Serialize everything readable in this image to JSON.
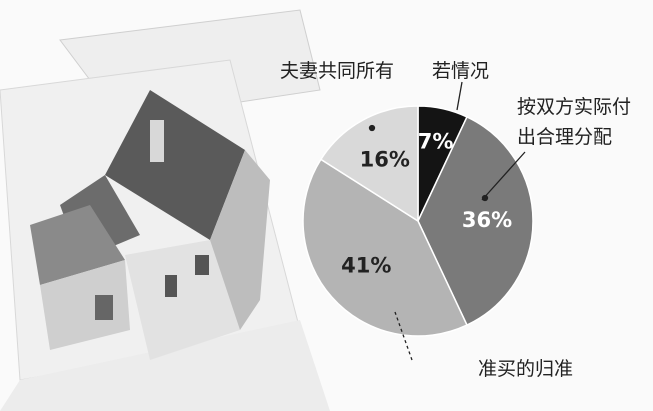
{
  "chart_data": {
    "type": "pie",
    "categories": [
      "若情况",
      "按双方实际付出合理分配",
      "准买的归准",
      "夫妻共同所有"
    ],
    "values": [
      7,
      36,
      41,
      16
    ],
    "value_labels": [
      "7%",
      "36%",
      "41%",
      "16%"
    ],
    "colors": [
      "#141414",
      "#7a7a7a",
      "#b4b4b4",
      "#d9d9d9"
    ]
  }
}
